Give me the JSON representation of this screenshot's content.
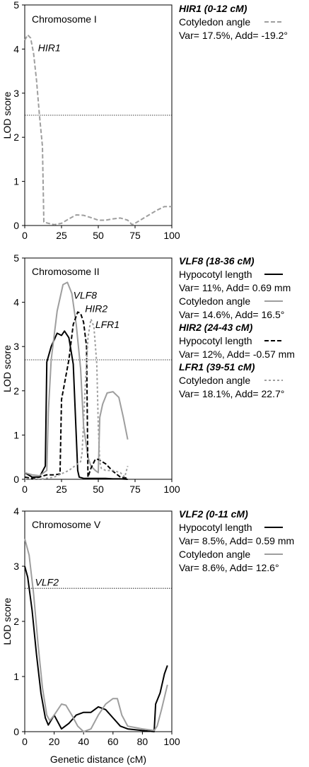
{
  "x_axis_label": "Genetic distance (cM)",
  "y_axis_label": "LOD score",
  "chart_data": [
    {
      "type": "line",
      "panel_title": "Chromosome I",
      "xlim": [
        0,
        100
      ],
      "ylim": [
        0,
        5
      ],
      "x_ticks": [
        0,
        25,
        50,
        75,
        100
      ],
      "y_ticks": [
        0,
        1,
        2,
        3,
        4,
        5
      ],
      "xlabel": "",
      "ylabel": "LOD score",
      "threshold": 2.5,
      "annotations": [
        {
          "text": "HIR1",
          "x": 9,
          "y": 3.95
        }
      ],
      "series": [
        {
          "name": "Cotyledon angle",
          "color": "#9e9e9e",
          "dash": "dashed",
          "x": [
            0,
            2,
            4,
            6,
            8,
            10,
            12,
            13,
            16,
            20,
            25,
            30,
            35,
            40,
            45,
            50,
            55,
            60,
            65,
            70,
            73,
            75,
            80,
            85,
            90,
            95,
            100
          ],
          "y": [
            4.2,
            4.32,
            4.25,
            3.9,
            3.3,
            2.5,
            1.8,
            0.08,
            0.05,
            0.02,
            0.05,
            0.15,
            0.24,
            0.23,
            0.18,
            0.12,
            0.12,
            0.15,
            0.17,
            0.12,
            0.02,
            0.05,
            0.15,
            0.25,
            0.35,
            0.43,
            0.43
          ]
        }
      ],
      "legend": {
        "heading": "HIR1 (0-12 cM)",
        "items": [
          {
            "label": "Cotyledon angle",
            "color": "#9e9e9e",
            "dash": "dashed",
            "stats": "Var= 17.5%, Add= -19.2°"
          }
        ]
      }
    },
    {
      "type": "line",
      "panel_title": "Chromosome II",
      "xlim": [
        0,
        100
      ],
      "ylim": [
        0,
        5
      ],
      "x_ticks": [
        0,
        25,
        50,
        75,
        100
      ],
      "y_ticks": [
        0,
        1,
        2,
        3,
        4,
        5
      ],
      "xlabel": "",
      "ylabel": "LOD score",
      "threshold": 2.7,
      "annotations": [
        {
          "text": "VLF8",
          "x": 33,
          "y": 4.08
        },
        {
          "text": "HIR2",
          "x": 41,
          "y": 3.78
        },
        {
          "text": "LFR1",
          "x": 48,
          "y": 3.42
        }
      ],
      "series": [
        {
          "name": "Hypocotyl length",
          "qtl": "VLF8",
          "color": "#000000",
          "dash": "solid",
          "x": [
            0,
            5,
            10,
            14,
            15,
            18,
            22,
            25,
            27,
            30,
            33,
            35,
            36,
            37,
            40,
            45,
            50,
            55,
            60,
            65,
            70
          ],
          "y": [
            0.15,
            0.05,
            0.05,
            0.3,
            2.65,
            3.0,
            3.3,
            3.25,
            3.35,
            3.2,
            2.6,
            1.0,
            0.2,
            0.05,
            0.02,
            0.02,
            0.02,
            0.02,
            0.01,
            0.01,
            0.0
          ]
        },
        {
          "name": "Cotyledon angle",
          "qtl": "VLF8",
          "color": "#9e9e9e",
          "dash": "solid",
          "x": [
            0,
            5,
            10,
            15,
            16,
            18,
            22,
            26,
            29,
            32,
            35,
            38,
            40,
            43,
            45,
            48,
            50,
            51,
            53,
            56,
            60,
            64,
            67,
            70
          ],
          "y": [
            0.15,
            0.1,
            0.08,
            0.2,
            1.5,
            2.7,
            3.8,
            4.4,
            4.45,
            4.2,
            3.5,
            2.5,
            1.2,
            0.5,
            0.3,
            0.2,
            0.15,
            1.4,
            1.7,
            1.95,
            1.98,
            1.85,
            1.4,
            0.9
          ]
        },
        {
          "name": "Hypocotyl length",
          "qtl": "HIR2",
          "color": "#000000",
          "dash": "dashed",
          "x": [
            0,
            5,
            10,
            15,
            20,
            24,
            25,
            30,
            33,
            36,
            38,
            40,
            42,
            43,
            45,
            48,
            50,
            55,
            60,
            65,
            70
          ],
          "y": [
            0.05,
            0.02,
            0.05,
            0.1,
            0.1,
            0.12,
            1.8,
            2.7,
            3.5,
            3.78,
            3.75,
            3.55,
            3.0,
            0.05,
            0.25,
            0.45,
            0.45,
            0.35,
            0.18,
            0.05,
            0.02
          ]
        },
        {
          "name": "Cotyledon angle",
          "qtl": "LFR1",
          "color": "#9e9e9e",
          "dash": "dotted",
          "x": [
            0,
            10,
            20,
            30,
            38,
            39,
            41,
            43,
            45,
            47,
            49,
            50,
            51,
            52,
            55,
            60,
            65,
            68,
            70
          ],
          "y": [
            0.0,
            0.0,
            0.05,
            0.2,
            0.4,
            0.6,
            2.0,
            3.2,
            3.62,
            3.45,
            2.6,
            1.2,
            0.4,
            0.25,
            0.2,
            0.2,
            0.15,
            0.05,
            0.3
          ]
        }
      ],
      "legend": {
        "groups": [
          {
            "heading": "VLF8 (18-36 cM)",
            "items": [
              {
                "label": "Hypocotyl length",
                "color": "#000000",
                "dash": "solid",
                "stats": "Var= 11%, Add= 0.69 mm"
              },
              {
                "label": "Cotyledon angle",
                "color": "#9e9e9e",
                "dash": "solid",
                "stats": "Var= 14.6%, Add= 16.5°"
              }
            ]
          },
          {
            "heading": "HIR2 (24-43 cM)",
            "items": [
              {
                "label": "Hypocotyl length",
                "color": "#000000",
                "dash": "dashed",
                "stats": "Var= 12%, Add= -0.57 mm"
              }
            ]
          },
          {
            "heading": "LFR1 (39-51 cM)",
            "items": [
              {
                "label": "Cotyledon angle",
                "color": "#9e9e9e",
                "dash": "dotted",
                "stats": "Var= 18.1%, Add= 22.7°"
              }
            ]
          }
        ]
      }
    },
    {
      "type": "line",
      "panel_title": "Chromosome V",
      "xlim": [
        0,
        100
      ],
      "ylim": [
        0,
        4
      ],
      "x_ticks": [
        0,
        20,
        40,
        60,
        80,
        100
      ],
      "y_ticks": [
        0,
        1,
        2,
        3,
        4
      ],
      "xlabel": "Genetic distance (cM)",
      "ylabel": "LOD score",
      "threshold": 2.6,
      "annotations": [
        {
          "text": "VLF2",
          "x": 7,
          "y": 2.65
        }
      ],
      "series": [
        {
          "name": "Hypocotyl length",
          "color": "#000000",
          "dash": "solid",
          "x": [
            0,
            2,
            5,
            8,
            11,
            14,
            16,
            20,
            25,
            30,
            35,
            40,
            45,
            50,
            55,
            60,
            65,
            70,
            80,
            88,
            89,
            92,
            95,
            97
          ],
          "y": [
            3.0,
            2.8,
            2.2,
            1.4,
            0.7,
            0.25,
            0.12,
            0.3,
            0.05,
            0.15,
            0.3,
            0.35,
            0.35,
            0.45,
            0.4,
            0.25,
            0.1,
            0.05,
            0.02,
            0.0,
            0.5,
            0.7,
            1.05,
            1.2
          ]
        },
        {
          "name": "Cotyledon angle",
          "color": "#9e9e9e",
          "dash": "solid",
          "x": [
            0,
            3,
            6,
            9,
            12,
            15,
            17,
            20,
            25,
            28,
            32,
            36,
            40,
            45,
            50,
            55,
            60,
            63,
            66,
            70,
            80,
            88,
            90,
            93,
            97
          ],
          "y": [
            3.5,
            3.2,
            2.5,
            1.6,
            0.8,
            0.3,
            0.2,
            0.3,
            0.5,
            0.48,
            0.3,
            0.1,
            0.0,
            0.05,
            0.3,
            0.5,
            0.6,
            0.6,
            0.3,
            0.1,
            0.05,
            0.02,
            0.1,
            0.4,
            0.85
          ]
        }
      ],
      "legend": {
        "heading": "VLF2 (0-11 cM)",
        "items": [
          {
            "label": "Hypocotyl length",
            "color": "#000000",
            "dash": "solid",
            "stats": "Var= 8.5%, Add= 0.59 mm"
          },
          {
            "label": "Cotyledon angle",
            "color": "#9e9e9e",
            "dash": "solid",
            "stats": "Var= 8.6%, Add= 12.6°"
          }
        ]
      }
    }
  ]
}
